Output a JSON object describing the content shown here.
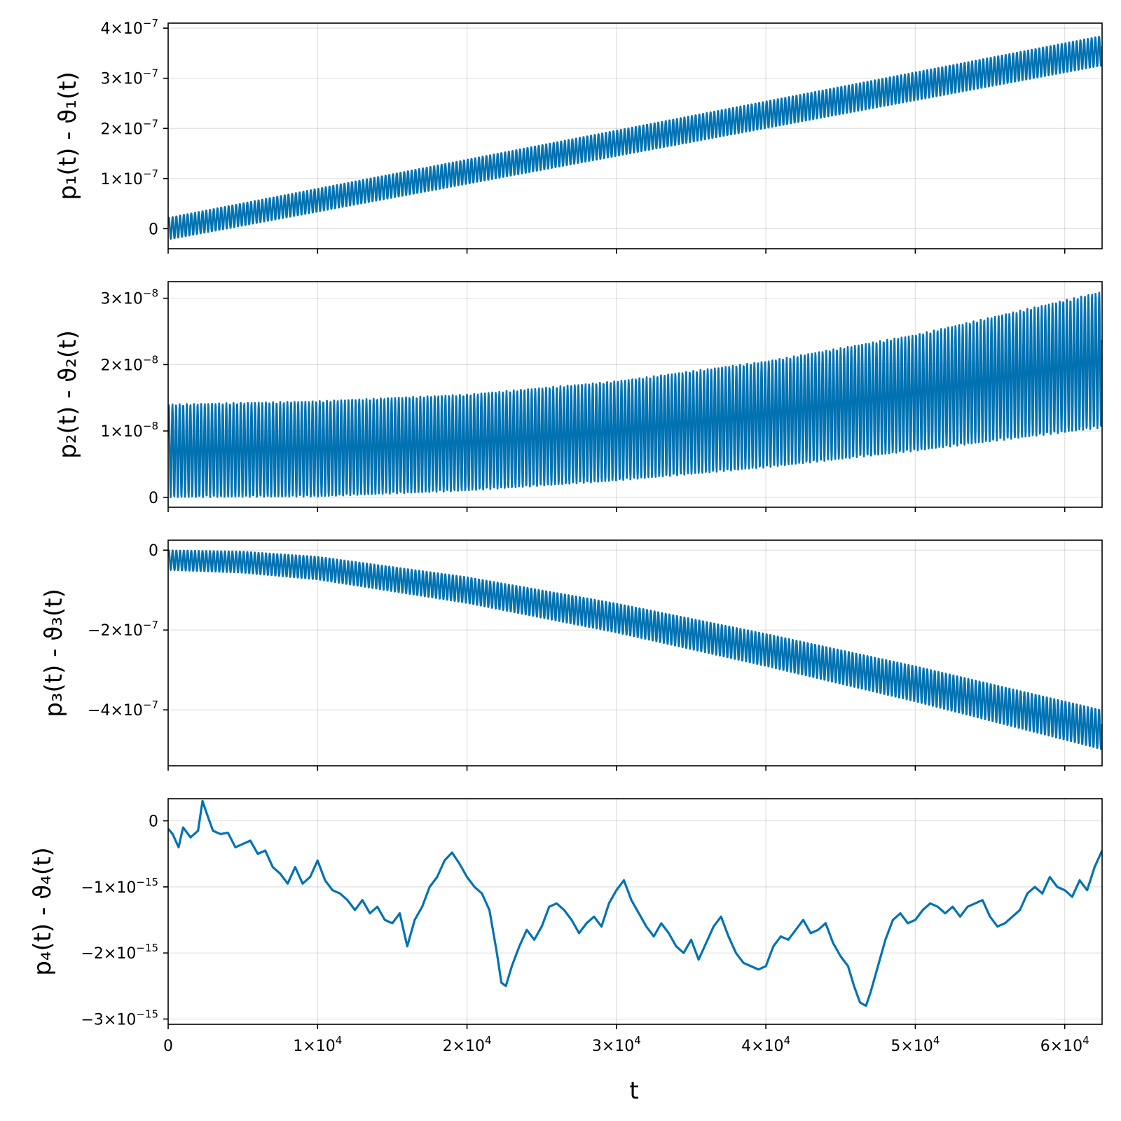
{
  "chart_data": [
    {
      "type": "line",
      "panel": 1,
      "ylabel": "p₁(t) - ϑ₁(t)",
      "xlim": [
        0,
        62500
      ],
      "ylim": [
        -4e-08,
        4.1e-07
      ],
      "yticks": [
        {
          "value": 0,
          "label": "0"
        },
        {
          "value": 1e-07,
          "mant": "1×10",
          "exp": "−7"
        },
        {
          "value": 2e-07,
          "mant": "2×10",
          "exp": "−7"
        },
        {
          "value": 3e-07,
          "mant": "3×10",
          "exp": "−7"
        },
        {
          "value": 4e-07,
          "mant": "4×10",
          "exp": "−7"
        }
      ],
      "series_color": "#0072b2",
      "oscillating": true,
      "center": {
        "t": [
          0,
          62500
        ],
        "v": [
          0,
          3.55e-07
        ]
      },
      "amplitude": {
        "t": [
          0,
          62500
        ],
        "v": [
          2.2e-08,
          3e-08
        ]
      },
      "cycles": 250
    },
    {
      "type": "line",
      "panel": 2,
      "ylabel": "p₂(t) - ϑ₂(t)",
      "xlim": [
        0,
        62500
      ],
      "ylim": [
        -1.5e-09,
        3.25e-08
      ],
      "yticks": [
        {
          "value": 0,
          "label": "0"
        },
        {
          "value": 1e-08,
          "mant": "1×10",
          "exp": "−8"
        },
        {
          "value": 2e-08,
          "mant": "2×10",
          "exp": "−8"
        },
        {
          "value": 3e-08,
          "mant": "3×10",
          "exp": "−8"
        }
      ],
      "series_color": "#0072b2",
      "oscillating": true,
      "lower": {
        "t": [
          0,
          10000,
          20000,
          30000,
          40000,
          50000,
          62500
        ],
        "v": [
          0,
          1e-10,
          1e-09,
          2.5e-09,
          4.5e-09,
          7e-09,
          1.05e-08
        ]
      },
      "upper": {
        "t": [
          0,
          10000,
          20000,
          30000,
          40000,
          50000,
          62500
        ],
        "v": [
          1.4e-08,
          1.45e-08,
          1.55e-08,
          1.75e-08,
          2.05e-08,
          2.45e-08,
          3.1e-08
        ]
      },
      "cycles": 260
    },
    {
      "type": "line",
      "panel": 3,
      "ylabel": "p₃(t) - ϑ₃(t)",
      "xlim": [
        0,
        62500
      ],
      "ylim": [
        -5.4e-07,
        2.5e-08
      ],
      "yticks": [
        {
          "value": 0,
          "label": "0"
        },
        {
          "value": -2e-07,
          "mant": "−2×10",
          "exp": "−7"
        },
        {
          "value": -4e-07,
          "mant": "−4×10",
          "exp": "−7"
        }
      ],
      "series_color": "#0072b2",
      "oscillating": true,
      "center": {
        "t": [
          0,
          5000,
          10000,
          20000,
          30000,
          40000,
          50000,
          62500
        ],
        "v": [
          -2.5e-08,
          -3e-08,
          -4.5e-08,
          -1e-07,
          -1.7e-07,
          -2.5e-07,
          -3.35e-07,
          -4.5e-07
        ]
      },
      "amplitude": {
        "t": [
          0,
          62500
        ],
        "v": [
          2.5e-08,
          5e-08
        ]
      },
      "cycles": 250
    },
    {
      "type": "line",
      "panel": 4,
      "ylabel": "p₄(t) - ϑ₄(t)",
      "xlabel": "t",
      "xlim": [
        0,
        62500
      ],
      "ylim": [
        -3.08e-15,
        3.35e-16
      ],
      "yticks": [
        {
          "value": 0,
          "label": "0"
        },
        {
          "value": -1e-15,
          "mant": "−1×10",
          "exp": "−15"
        },
        {
          "value": -2e-15,
          "mant": "−2×10",
          "exp": "−15"
        },
        {
          "value": -3e-15,
          "mant": "−3×10",
          "exp": "−15"
        }
      ],
      "xticks": [
        {
          "value": 0,
          "label": "0"
        },
        {
          "value": 10000,
          "mant": "1×10",
          "exp": "4"
        },
        {
          "value": 20000,
          "mant": "2×10",
          "exp": "4"
        },
        {
          "value": 30000,
          "mant": "3×10",
          "exp": "4"
        },
        {
          "value": 40000,
          "mant": "4×10",
          "exp": "4"
        },
        {
          "value": 50000,
          "mant": "5×10",
          "exp": "4"
        },
        {
          "value": 60000,
          "mant": "6×10",
          "exp": "4"
        }
      ],
      "series_color": "#0072b2",
      "oscillating": false,
      "t": [
        0,
        300,
        700,
        1000,
        1500,
        2000,
        2300,
        2600,
        3000,
        3500,
        4000,
        4500,
        5000,
        5500,
        6000,
        6500,
        7000,
        7500,
        8000,
        8500,
        9000,
        9500,
        10000,
        10500,
        11000,
        11500,
        12000,
        12500,
        13000,
        13500,
        14000,
        14500,
        15000,
        15500,
        16000,
        16500,
        17000,
        17500,
        18000,
        18500,
        19000,
        19500,
        20000,
        20500,
        21000,
        21500,
        22000,
        22300,
        22600,
        23000,
        23500,
        24000,
        24500,
        25000,
        25500,
        26000,
        26500,
        27000,
        27500,
        28000,
        28500,
        29000,
        29500,
        30000,
        30500,
        31000,
        31500,
        32000,
        32500,
        33000,
        33500,
        34000,
        34500,
        35000,
        35500,
        36000,
        36500,
        37000,
        37500,
        38000,
        38500,
        39000,
        39500,
        40000,
        40500,
        41000,
        41500,
        42000,
        42500,
        43000,
        43500,
        44000,
        44500,
        45000,
        45500,
        45900,
        46300,
        46700,
        47000,
        47500,
        48000,
        48500,
        49000,
        49500,
        50000,
        50500,
        51000,
        51500,
        52000,
        52500,
        53000,
        53500,
        54000,
        54500,
        55000,
        55500,
        56000,
        56500,
        57000,
        57500,
        58000,
        58500,
        59000,
        59500,
        60000,
        60500,
        61000,
        61500,
        62000,
        62500
      ],
      "v": [
        -1.2e-16,
        -2e-16,
        -4e-16,
        -1e-16,
        -2.5e-16,
        -1.5e-16,
        3e-16,
        1e-16,
        -1.5e-16,
        -2e-16,
        -1.8e-16,
        -4e-16,
        -3.5e-16,
        -3e-16,
        -5e-16,
        -4.5e-16,
        -7e-16,
        -8e-16,
        -9.5e-16,
        -7e-16,
        -9.5e-16,
        -8.5e-16,
        -6e-16,
        -9e-16,
        -1.05e-15,
        -1.1e-15,
        -1.2e-15,
        -1.35e-15,
        -1.2e-15,
        -1.4e-15,
        -1.3e-15,
        -1.5e-15,
        -1.55e-15,
        -1.4e-15,
        -1.9e-15,
        -1.5e-15,
        -1.3e-15,
        -1e-15,
        -8.5e-16,
        -6e-16,
        -4.8e-16,
        -6.5e-16,
        -8.5e-16,
        -1e-15,
        -1.1e-15,
        -1.35e-15,
        -2e-15,
        -2.45e-15,
        -2.5e-15,
        -2.2e-15,
        -1.9e-15,
        -1.65e-15,
        -1.8e-15,
        -1.6e-15,
        -1.3e-15,
        -1.25e-15,
        -1.35e-15,
        -1.5e-15,
        -1.7e-15,
        -1.55e-15,
        -1.45e-15,
        -1.6e-15,
        -1.25e-15,
        -1.05e-15,
        -9e-16,
        -1.2e-15,
        -1.4e-15,
        -1.6e-15,
        -1.75e-15,
        -1.55e-15,
        -1.7e-15,
        -1.9e-15,
        -2e-15,
        -1.8e-15,
        -2.1e-15,
        -1.85e-15,
        -1.6e-15,
        -1.45e-15,
        -1.75e-15,
        -2e-15,
        -2.15e-15,
        -2.2e-15,
        -2.25e-15,
        -2.2e-15,
        -1.9e-15,
        -1.75e-15,
        -1.8e-15,
        -1.65e-15,
        -1.5e-15,
        -1.7e-15,
        -1.65e-15,
        -1.55e-15,
        -1.85e-15,
        -2.05e-15,
        -2.2e-15,
        -2.5e-15,
        -2.75e-15,
        -2.8e-15,
        -2.6e-15,
        -2.2e-15,
        -1.8e-15,
        -1.5e-15,
        -1.4e-15,
        -1.55e-15,
        -1.5e-15,
        -1.35e-15,
        -1.25e-15,
        -1.3e-15,
        -1.4e-15,
        -1.3e-15,
        -1.45e-15,
        -1.3e-15,
        -1.25e-15,
        -1.2e-15,
        -1.45e-15,
        -1.6e-15,
        -1.55e-15,
        -1.45e-15,
        -1.35e-15,
        -1.1e-15,
        -1e-15,
        -1.1e-15,
        -8.5e-16,
        -1e-15,
        -1.05e-15,
        -1.15e-15,
        -9e-16,
        -1.05e-15,
        -7e-16,
        -4.5e-16
      ]
    }
  ]
}
